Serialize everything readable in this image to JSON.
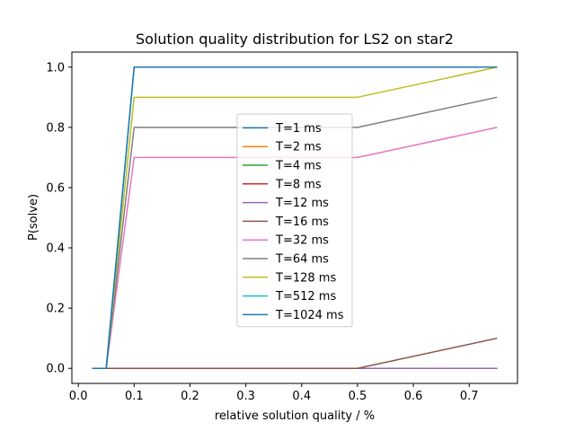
{
  "chart_data": {
    "type": "line",
    "title": "Solution quality distribution for LS2 on star2",
    "xlabel": "relative solution quality / %",
    "ylabel": "P(solve)",
    "xlim": [
      -0.0115,
      0.7865
    ],
    "ylim": [
      -0.05,
      1.05
    ],
    "xticks": [
      0.0,
      0.1,
      0.2,
      0.3,
      0.4,
      0.5,
      0.6,
      0.7
    ],
    "xtick_labels": [
      "0.0",
      "0.1",
      "0.2",
      "0.3",
      "0.4",
      "0.5",
      "0.6",
      "0.7"
    ],
    "yticks": [
      0.0,
      0.2,
      0.4,
      0.6,
      0.8,
      1.0
    ],
    "ytick_labels": [
      "0.0",
      "0.2",
      "0.4",
      "0.6",
      "0.8",
      "1.0"
    ],
    "grid": false,
    "legend_position": "center",
    "x": [
      0.025,
      0.05,
      0.1,
      0.5,
      0.75
    ],
    "series": [
      {
        "name": "T=1 ms",
        "color": "#1f77b4",
        "values": [
          0,
          0,
          0,
          0,
          0
        ]
      },
      {
        "name": "T=2 ms",
        "color": "#ff7f0e",
        "values": [
          0,
          0,
          0,
          0,
          0
        ]
      },
      {
        "name": "T=4 ms",
        "color": "#2ca02c",
        "values": [
          0,
          0,
          0,
          0,
          0
        ]
      },
      {
        "name": "T=8 ms",
        "color": "#d62728",
        "values": [
          0,
          0,
          0,
          0,
          0
        ]
      },
      {
        "name": "T=12 ms",
        "color": "#9467bd",
        "values": [
          0,
          0,
          0,
          0,
          0
        ]
      },
      {
        "name": "T=16 ms",
        "color": "#8c564b",
        "values": [
          0,
          0,
          0,
          0,
          0.1
        ]
      },
      {
        "name": "T=32 ms",
        "color": "#e377c2",
        "values": [
          0,
          0,
          0.7,
          0.7,
          0.8
        ]
      },
      {
        "name": "T=64 ms",
        "color": "#7f7f7f",
        "values": [
          0,
          0,
          0.8,
          0.8,
          0.9
        ]
      },
      {
        "name": "T=128 ms",
        "color": "#bcbd22",
        "values": [
          0,
          0,
          0.9,
          0.9,
          1.0
        ]
      },
      {
        "name": "T=512 ms",
        "color": "#17becf",
        "values": [
          0,
          0,
          1.0,
          1.0,
          1.0
        ]
      },
      {
        "name": "T=1024 ms",
        "color": "#1f77b4",
        "values": [
          0,
          0,
          1.0,
          1.0,
          1.0
        ]
      }
    ]
  }
}
